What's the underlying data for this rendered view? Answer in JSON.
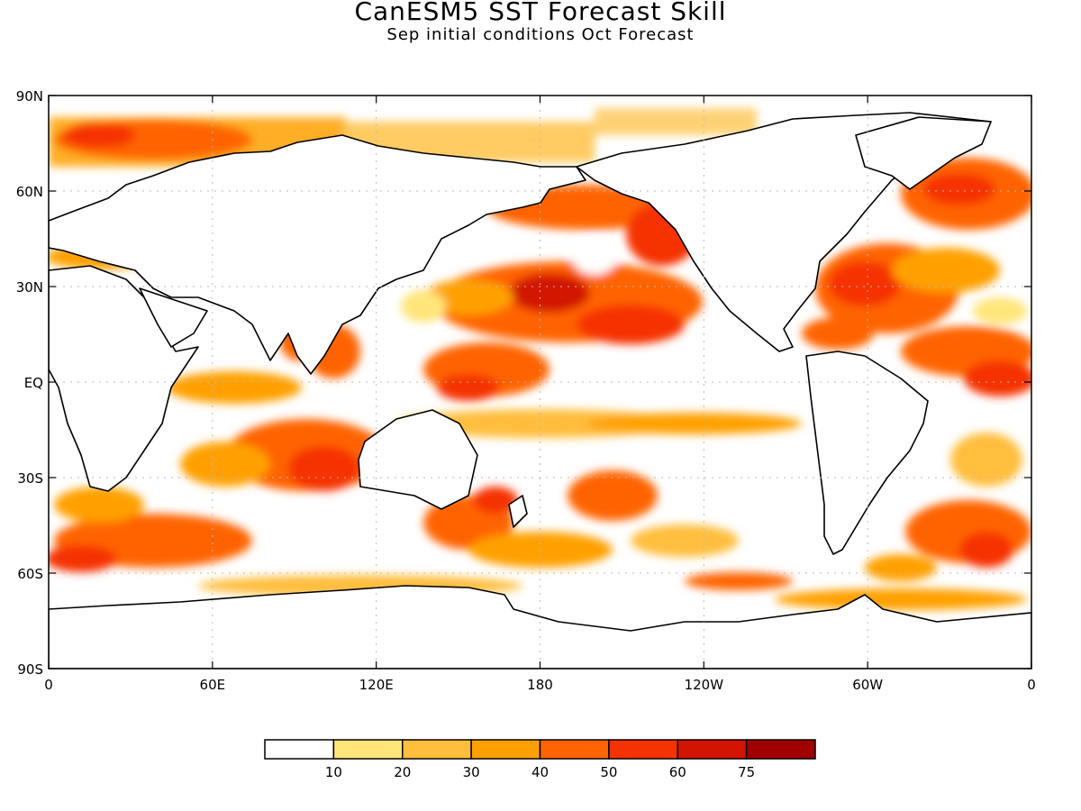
{
  "title": "CanESM5 SST Forecast Skill",
  "subtitle": "Sep initial conditions  Oct Forecast",
  "lat_labels": [
    "90N",
    "60N",
    "30N",
    "EQ",
    "30S",
    "60S",
    "90S"
  ],
  "lon_labels": [
    "0",
    "60E",
    "120E",
    "180",
    "120W",
    "60W",
    "0"
  ],
  "colorbar": {
    "ticks": [
      "10",
      "20",
      "30",
      "40",
      "50",
      "60",
      "75"
    ],
    "colors": [
      "#ffffff",
      "#ffe57a",
      "#ffbe3c",
      "#ffa000",
      "#ff6400",
      "#f53200",
      "#d21400",
      "#a00000"
    ]
  },
  "map_colors": {
    "land": "#ffffff",
    "coast": "#000000",
    "grid": "#b9b9b9"
  }
}
